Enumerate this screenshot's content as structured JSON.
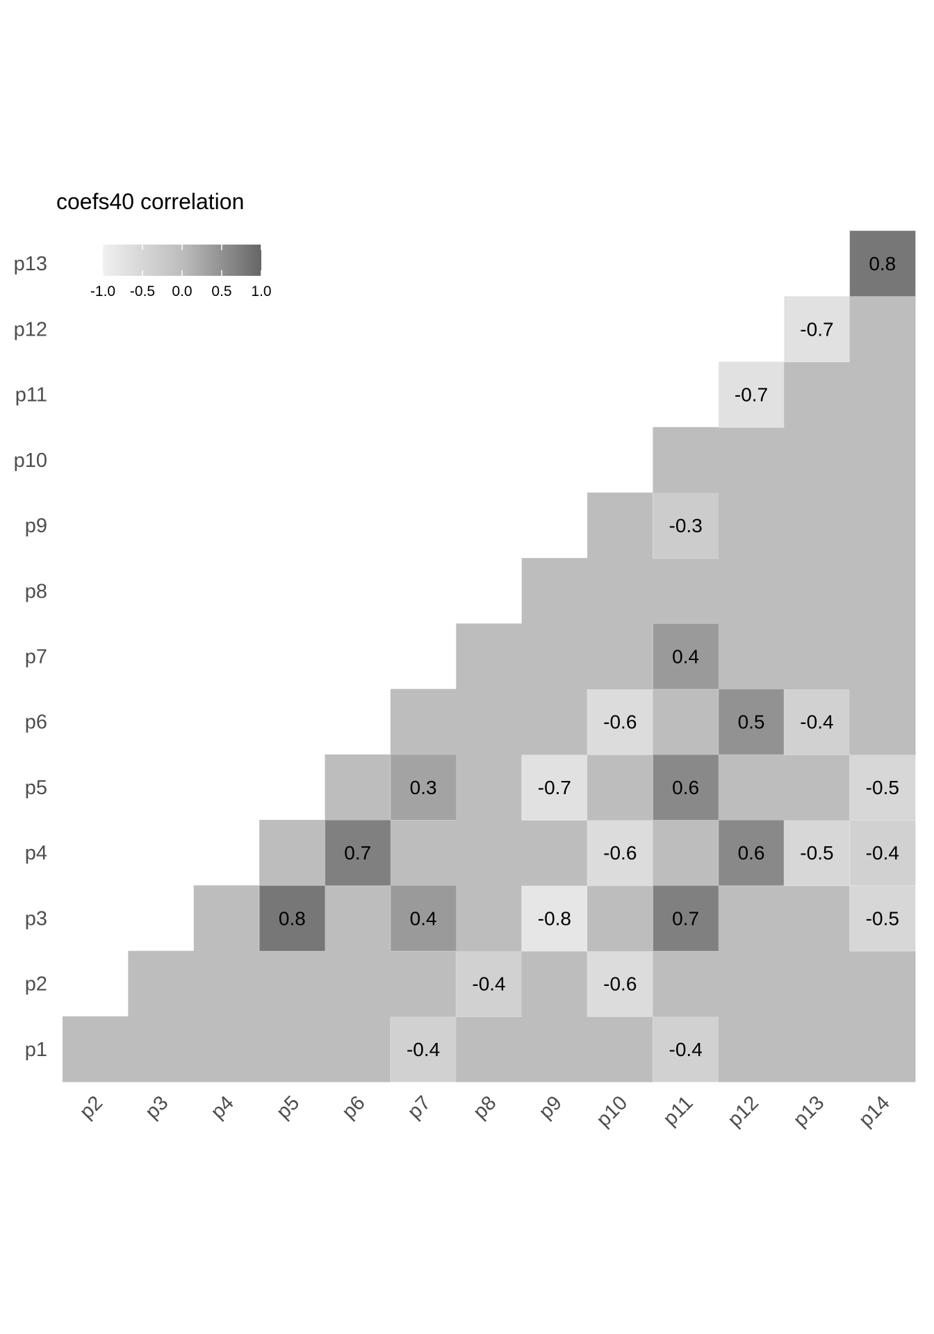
{
  "chart_data": {
    "type": "heatmap",
    "subtype": "lower-triangle correlation matrix",
    "legend": {
      "title": "coefs40 correlation",
      "placement": "top-left",
      "ticks": [
        "-1.0",
        "-0.5",
        "0.0",
        "0.5",
        "1.0"
      ],
      "range": [
        -1,
        1
      ],
      "color_low": "#f0f0f0",
      "color_mid": "#bdbdbd",
      "color_high": "#666666"
    },
    "x_categories": [
      "p2",
      "p3",
      "p4",
      "p5",
      "p6",
      "p7",
      "p8",
      "p9",
      "p10",
      "p11",
      "p12",
      "p13",
      "p14"
    ],
    "y_categories": [
      "p1",
      "p2",
      "p3",
      "p4",
      "p5",
      "p6",
      "p7",
      "p8",
      "p9",
      "p10",
      "p11",
      "p12",
      "p13"
    ],
    "cell_color_default": "#bdbdbd",
    "labeled_cells": [
      {
        "x": "p7",
        "y": "p1",
        "value": -0.4,
        "label": "-0.4"
      },
      {
        "x": "p11",
        "y": "p1",
        "value": -0.4,
        "label": "-0.4"
      },
      {
        "x": "p8",
        "y": "p2",
        "value": -0.4,
        "label": "-0.4"
      },
      {
        "x": "p10",
        "y": "p2",
        "value": -0.6,
        "label": "-0.6"
      },
      {
        "x": "p5",
        "y": "p3",
        "value": 0.8,
        "label": "0.8"
      },
      {
        "x": "p7",
        "y": "p3",
        "value": 0.4,
        "label": "0.4"
      },
      {
        "x": "p9",
        "y": "p3",
        "value": -0.8,
        "label": "-0.8"
      },
      {
        "x": "p11",
        "y": "p3",
        "value": 0.7,
        "label": "0.7"
      },
      {
        "x": "p14",
        "y": "p3",
        "value": -0.5,
        "label": "-0.5"
      },
      {
        "x": "p6",
        "y": "p4",
        "value": 0.7,
        "label": "0.7"
      },
      {
        "x": "p10",
        "y": "p4",
        "value": -0.6,
        "label": "-0.6"
      },
      {
        "x": "p12",
        "y": "p4",
        "value": 0.6,
        "label": "0.6"
      },
      {
        "x": "p13",
        "y": "p4",
        "value": -0.5,
        "label": "-0.5"
      },
      {
        "x": "p14",
        "y": "p4",
        "value": -0.4,
        "label": "-0.4"
      },
      {
        "x": "p7",
        "y": "p5",
        "value": 0.3,
        "label": "0.3"
      },
      {
        "x": "p9",
        "y": "p5",
        "value": -0.7,
        "label": "-0.7"
      },
      {
        "x": "p11",
        "y": "p5",
        "value": 0.6,
        "label": "0.6"
      },
      {
        "x": "p14",
        "y": "p5",
        "value": -0.5,
        "label": "-0.5"
      },
      {
        "x": "p10",
        "y": "p6",
        "value": -0.6,
        "label": "-0.6"
      },
      {
        "x": "p12",
        "y": "p6",
        "value": 0.5,
        "label": "0.5"
      },
      {
        "x": "p13",
        "y": "p6",
        "value": -0.4,
        "label": "-0.4"
      },
      {
        "x": "p11",
        "y": "p7",
        "value": 0.4,
        "label": "0.4"
      },
      {
        "x": "p11",
        "y": "p9",
        "value": -0.3,
        "label": "-0.3"
      },
      {
        "x": "p12",
        "y": "p11",
        "value": -0.7,
        "label": "-0.7"
      },
      {
        "x": "p13",
        "y": "p12",
        "value": -0.7,
        "label": "-0.7"
      },
      {
        "x": "p14",
        "y": "p13",
        "value": 0.8,
        "label": "0.8"
      }
    ]
  }
}
